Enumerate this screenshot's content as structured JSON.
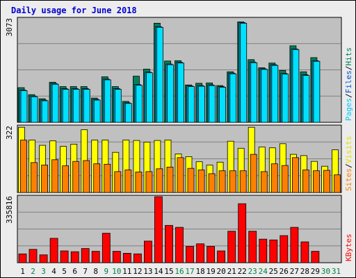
{
  "chart_data": {
    "type": "bar",
    "title": "Daily usage for June 2018",
    "categories": [
      "1",
      "2",
      "3",
      "4",
      "5",
      "6",
      "7",
      "8",
      "9",
      "10",
      "11",
      "12",
      "13",
      "14",
      "15",
      "16",
      "17",
      "18",
      "19",
      "20",
      "21",
      "22",
      "23",
      "24",
      "25",
      "26",
      "27",
      "28",
      "29",
      "30",
      "31"
    ],
    "weekend_days": [
      "2",
      "3",
      "9",
      "10",
      "16",
      "17",
      "23",
      "24",
      "30",
      "31"
    ],
    "colors": {
      "background": "#c0c0c0",
      "frame_bg": "#ececec",
      "title": "#0000cc",
      "hits": "#00805c",
      "files": "#00b0e8",
      "pages": "#00e0ff",
      "visits": "#ffff00",
      "sites": "#ff8000",
      "kbytes": "#ff0000",
      "weekday_label": "#000000",
      "weekend_label": "#008040",
      "grid": "#808080"
    },
    "panels": [
      {
        "max_label": "3073",
        "ymax": 3073,
        "legend": [
          {
            "text": "Hits",
            "color": "#00805c"
          },
          {
            "text": "/",
            "color": "#000000"
          },
          {
            "text": "Files",
            "color": "#0050d0"
          },
          {
            "text": "/",
            "color": "#000000"
          },
          {
            "text": "Pages",
            "color": "#00c8ff"
          }
        ],
        "series": [
          {
            "key": "hits",
            "color": "#00805c",
            "values": [
              1030,
              820,
              700,
              1190,
              1060,
              1060,
              1060,
              720,
              1350,
              1060,
              620,
              1370,
              1580,
              2940,
              1820,
              1830,
              1110,
              1160,
              1170,
              1090,
              1500,
              2980,
              1860,
              1620,
              1760,
              1540,
              2270,
              1500,
              1920,
              0,
              0
            ]
          },
          {
            "key": "files",
            "color": "#00b0e8",
            "values": [
              960,
              780,
              660,
              1150,
              1000,
              1000,
              1000,
              680,
              1280,
              1000,
              580,
              1120,
              1490,
              2840,
              1730,
              1780,
              1080,
              1090,
              1110,
              1060,
              1460,
              2960,
              1790,
              1590,
              1710,
              1450,
              2180,
              1410,
              1830,
              0,
              0
            ]
          },
          {
            "key": "pages",
            "color": "#00e0ff",
            "values": [
              940,
              760,
              640,
              1130,
              980,
              980,
              980,
              660,
              1260,
              980,
              560,
              1100,
              1470,
              2820,
              1710,
              1760,
              1060,
              1070,
              1090,
              1040,
              1440,
              2940,
              1770,
              1570,
              1690,
              1430,
              2160,
              1390,
              1810,
              0,
              0
            ]
          }
        ]
      },
      {
        "max_label": "322",
        "ymax": 322,
        "legend": [
          {
            "text": "Visits",
            "color": "#e0e000"
          },
          {
            "text": "/",
            "color": "#000000"
          },
          {
            "text": "Sites",
            "color": "#ff8000"
          }
        ],
        "series": [
          {
            "key": "visits",
            "color": "#ffff00",
            "values": [
              318,
              256,
              230,
              252,
              225,
              236,
              306,
              256,
              256,
              196,
              256,
              254,
              246,
              254,
              256,
              188,
              175,
              150,
              134,
              148,
              250,
              216,
              318,
              222,
              218,
              238,
              186,
              180,
              152,
              128,
              208
            ]
          },
          {
            "key": "sites",
            "color": "#ff8000",
            "values": [
              256,
              146,
              134,
              160,
              130,
              152,
              156,
              140,
              138,
              102,
              110,
              100,
              102,
              116,
              124,
              170,
              118,
              110,
              92,
              106,
              106,
              106,
              186,
              102,
              140,
              132,
              170,
              110,
              106,
              108,
              86
            ]
          }
        ]
      },
      {
        "max_label": "335816",
        "ymax": 335816,
        "legend": [
          {
            "text": "KBytes",
            "color": "#ff0000"
          }
        ],
        "series": [
          {
            "key": "kbytes",
            "color": "#ff0000",
            "values": [
              45000,
              68000,
              40000,
              124000,
              60000,
              56000,
              72000,
              58000,
              150000,
              58000,
              48000,
              45000,
              110000,
              335816,
              190000,
              180000,
              83000,
              96000,
              83000,
              60000,
              160000,
              300000,
              160000,
              120000,
              116000,
              138000,
              180000,
              106000,
              58000,
              0,
              0
            ]
          }
        ]
      }
    ],
    "kbytes_ylim": [
      0,
      335816
    ]
  }
}
